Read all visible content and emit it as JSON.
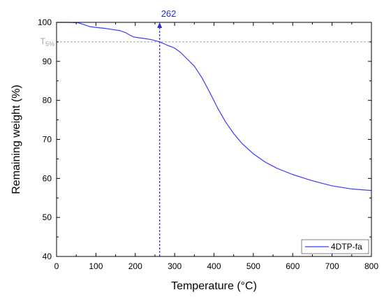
{
  "chart_data": {
    "type": "line",
    "title": "",
    "xlabel": "Temperature (°C)",
    "ylabel": "Remaining weight (%)",
    "xlim": [
      0,
      800
    ],
    "ylim": [
      40,
      100
    ],
    "xticks": [
      0,
      100,
      200,
      300,
      400,
      500,
      600,
      700,
      800
    ],
    "yticks": [
      40,
      50,
      60,
      70,
      80,
      90,
      100
    ],
    "grid": false,
    "legend_position": "bottom-right",
    "series": [
      {
        "name": "4DTP-fa",
        "color": "#3a3aff",
        "x": [
          0,
          30,
          55,
          70,
          85,
          100,
          120,
          140,
          160,
          175,
          185,
          195,
          205,
          220,
          240,
          262,
          280,
          300,
          315,
          330,
          350,
          370,
          390,
          410,
          430,
          450,
          470,
          500,
          530,
          560,
          600,
          650,
          700,
          750,
          800
        ],
        "y": [
          100,
          100,
          99.9,
          99.4,
          98.9,
          98.7,
          98.5,
          98.2,
          97.9,
          97.4,
          96.8,
          96.3,
          96.1,
          95.9,
          95.6,
          95.0,
          94.2,
          93.4,
          92.3,
          90.8,
          88.8,
          85.7,
          81.9,
          77.9,
          74.4,
          71.5,
          69.1,
          66.3,
          64.2,
          62.6,
          61.0,
          59.4,
          58.1,
          57.3,
          56.9
        ]
      }
    ],
    "annotations": {
      "t5_label": "T",
      "t5_sub": "5%",
      "t5_value": 95,
      "marker_x": 262,
      "marker_label": "262",
      "ref_color": "#a0a0a0",
      "marker_color": "#2b2bd9"
    }
  }
}
